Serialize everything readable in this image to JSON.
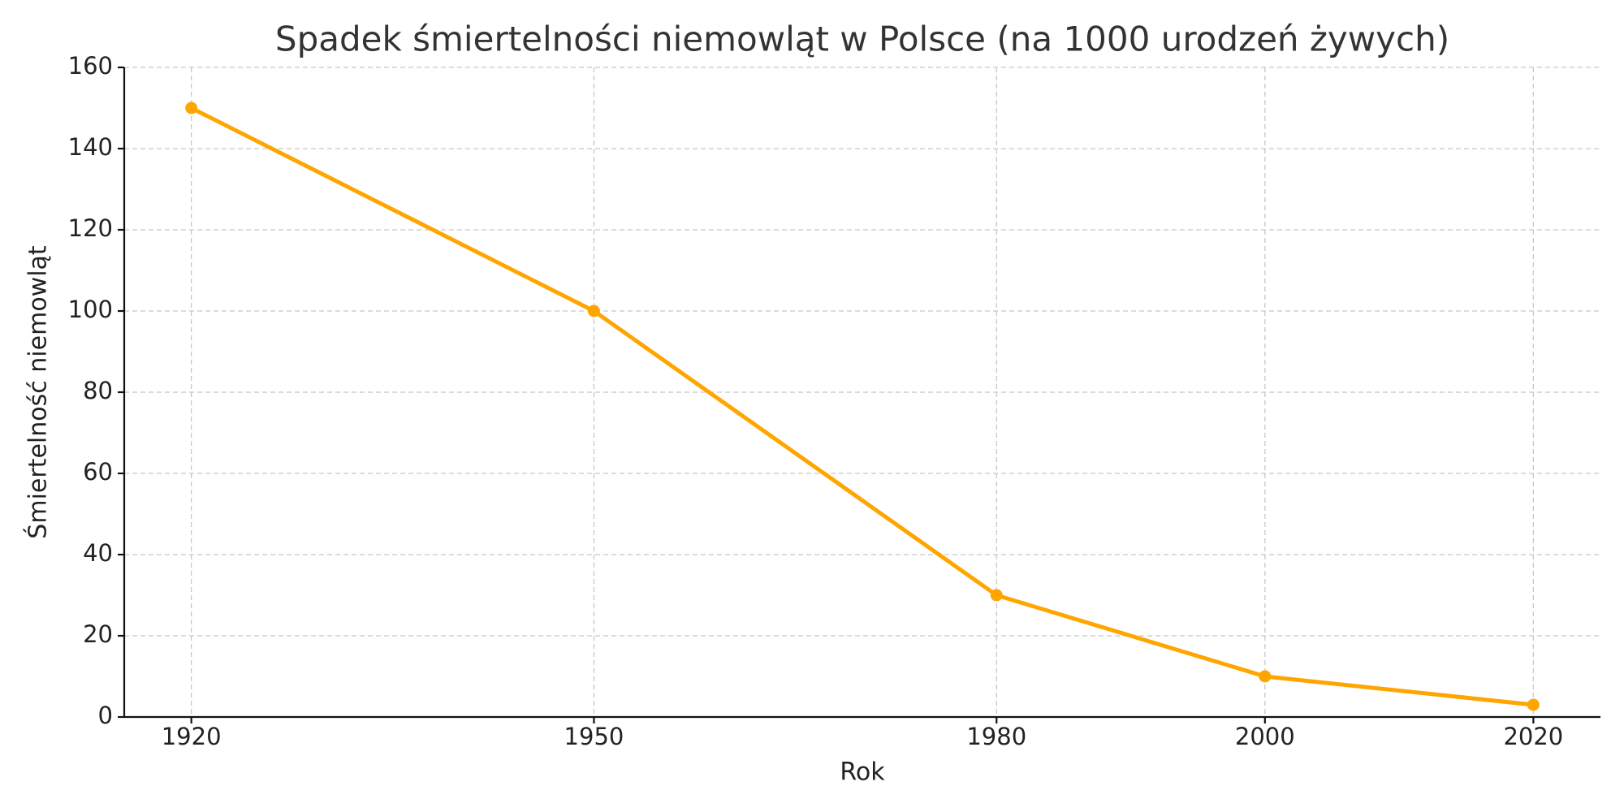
{
  "chart_data": {
    "type": "line",
    "title": "Spadek śmiertelności niemowląt w Polsce (na 1000 urodzeń żywych)",
    "x_label": "Rok",
    "y_label": "Śmiertelność niemowląt",
    "x": [
      1920,
      1950,
      1980,
      2000,
      2020
    ],
    "series": [
      {
        "name": "Śmiertelność niemowląt",
        "color": "#ffa500",
        "values": [
          150,
          100,
          30,
          10,
          3
        ]
      }
    ],
    "xlim": [
      1915,
      2025
    ],
    "xticks": [
      1920,
      1950,
      1980,
      2000,
      2020
    ],
    "ylim": [
      0,
      160
    ],
    "yticks": [
      0,
      20,
      40,
      60,
      80,
      100,
      120,
      140,
      160
    ],
    "grid": true
  }
}
